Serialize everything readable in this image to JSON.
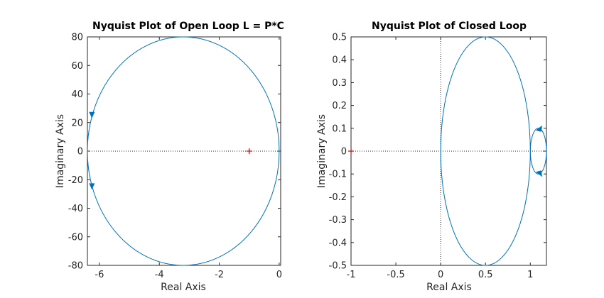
{
  "chart_data": [
    {
      "type": "line",
      "title": "Nyquist Plot of Open Loop L = P*C",
      "xlabel": "Real Axis",
      "ylabel": "Imaginary Axis",
      "xlim": [
        -6.4,
        0.05
      ],
      "ylim": [
        -80,
        80
      ],
      "xticks": [
        -6,
        -4,
        -2,
        0
      ],
      "xtick_labels": [
        "-6",
        "-4",
        "-2",
        "0"
      ],
      "yticks": [
        -80,
        -60,
        -40,
        -20,
        0,
        20,
        40,
        60,
        80
      ],
      "ytick_labels": [
        "-80",
        "-60",
        "-40",
        "-20",
        "0",
        "20",
        "40",
        "60",
        "80"
      ],
      "series": [
        {
          "curve": "ellipse",
          "center": [
            -3.2,
            0
          ],
          "radius_x": 3.2,
          "radius_y": 80,
          "color": "#0072BD",
          "arrows": [
            [
              -6.25,
              25
            ],
            [
              -6.25,
              -25
            ]
          ]
        }
      ],
      "marker": {
        "symbol": "+",
        "x": -1,
        "y": 0,
        "color": "#D00000"
      },
      "guide_lines": [
        "horizontal dotted line at imaginary 0"
      ],
      "grid": false
    },
    {
      "type": "line",
      "title": "Nyquist Plot of Closed Loop",
      "xlabel": "Real Axis",
      "ylabel": "Imaginary Axis",
      "xlim": [
        -1,
        1.18
      ],
      "ylim": [
        -0.5,
        0.5
      ],
      "xticks": [
        -1,
        -0.5,
        0,
        0.5,
        1
      ],
      "xtick_labels": [
        "-1",
        "-0.5",
        "0",
        "0.5",
        "1"
      ],
      "yticks": [
        -0.5,
        -0.4,
        -0.3,
        -0.2,
        -0.1,
        0,
        0.1,
        0.2,
        0.3,
        0.4,
        0.5
      ],
      "ytick_labels": [
        "-0.5",
        "-0.4",
        "-0.3",
        "-0.2",
        "-0.1",
        "0",
        "0.1",
        "0.2",
        "0.3",
        "0.4",
        "0.5"
      ],
      "series": [
        {
          "curve": "ellipse",
          "center": [
            0.5,
            0
          ],
          "radius_x": 0.5,
          "radius_y": 0.5,
          "color": "#0072BD"
        },
        {
          "curve": "ellipse",
          "center": [
            1.09,
            0
          ],
          "radius_x": 0.09,
          "radius_y": 0.1,
          "color": "#0072BD",
          "arrows": [
            [
              1.1,
              0.1
            ],
            [
              1.1,
              -0.1
            ]
          ]
        }
      ],
      "marker": {
        "symbol": "+",
        "x": -1,
        "y": 0,
        "color": "#D00000"
      },
      "guide_lines": [
        "horizontal dotted line at imaginary 0",
        "vertical dotted line at real 0"
      ],
      "grid": false
    }
  ]
}
